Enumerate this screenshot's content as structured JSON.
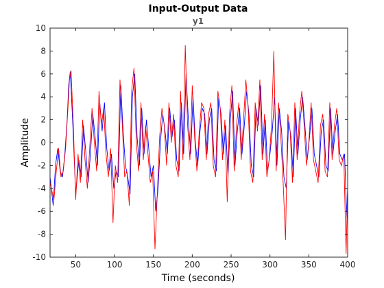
{
  "chart_data": {
    "type": "line",
    "title": "Input-Output Data",
    "subtitle": "y1",
    "xlabel": "Time (seconds)",
    "ylabel": "Amplitude",
    "xlim": [
      17,
      400
    ],
    "ylim": [
      -10,
      10
    ],
    "xticks": [
      50,
      100,
      150,
      200,
      250,
      300,
      350,
      400
    ],
    "yticks": [
      -10,
      -8,
      -6,
      -4,
      -2,
      0,
      2,
      4,
      6,
      8,
      10
    ],
    "xtick_labels": [
      "50",
      "100",
      "150",
      "200",
      "250",
      "300",
      "350",
      "400"
    ],
    "ytick_labels": [
      "-10",
      "-8",
      "-6",
      "-4",
      "-2",
      "0",
      "2",
      "4",
      "6",
      "8",
      "10"
    ],
    "grid": false,
    "series": [
      {
        "color": "#0000ff",
        "x": [
          17,
          21,
          24,
          27,
          30,
          33,
          36,
          39,
          41,
          43,
          46,
          50,
          54,
          57,
          60,
          63,
          66,
          69,
          72,
          75,
          78,
          81,
          84,
          87,
          90,
          93,
          96,
          99,
          102,
          105,
          108,
          111,
          114,
          117,
          120,
          123,
          126,
          129,
          132,
          135,
          138,
          141,
          144,
          147,
          150,
          153,
          156,
          159,
          162,
          165,
          168,
          171,
          174,
          177,
          180,
          183,
          186,
          189,
          192,
          195,
          198,
          201,
          204,
          207,
          210,
          213,
          216,
          219,
          222,
          225,
          228,
          231,
          234,
          237,
          240,
          243,
          246,
          249,
          252,
          255,
          258,
          261,
          264,
          267,
          270,
          273,
          276,
          279,
          282,
          285,
          288,
          291,
          294,
          297,
          300,
          303,
          306,
          309,
          312,
          315,
          318,
          321,
          324,
          327,
          330,
          333,
          336,
          339,
          342,
          345,
          348,
          351,
          354,
          357,
          360,
          363,
          366,
          369,
          372,
          375,
          378,
          381,
          384,
          387,
          390,
          393,
          396,
          399,
          400
        ],
        "values": [
          -3,
          -5.5,
          -2,
          -0.5,
          -2.5,
          -3,
          -1,
          2,
          5,
          6.2,
          2,
          -4.5,
          -1.5,
          -3,
          1.5,
          -0.8,
          -3.5,
          -1,
          2.5,
          0.5,
          -2,
          3.5,
          1,
          3.5,
          -0.5,
          -2.5,
          -1,
          -4,
          -2.5,
          -3,
          5,
          1,
          -2,
          -3,
          -4.5,
          4,
          6,
          0.5,
          -2,
          3,
          -1,
          2,
          -0.5,
          -3,
          -2,
          -6,
          -4,
          0,
          2.5,
          1,
          -1,
          3,
          0.5,
          2,
          -1.5,
          -2.5,
          3.5,
          -1,
          6,
          2,
          -1,
          4,
          0,
          -2,
          1,
          3,
          2.5,
          -1,
          2,
          3,
          -1.5,
          -2.5,
          4,
          2.5,
          -1,
          1.5,
          -3,
          2,
          4.5,
          -2,
          1,
          3,
          -1,
          1.5,
          4.5,
          2.5,
          -2,
          -3,
          3,
          1.5,
          5,
          -1,
          2,
          -2.5,
          -1,
          1,
          4,
          -2,
          3,
          1,
          -3,
          -4,
          2,
          0.5,
          -3,
          3,
          -1,
          2,
          4,
          1.5,
          -1.5,
          0.5,
          3,
          -1,
          -2,
          -3,
          1,
          2,
          -2,
          -2.5,
          3,
          -1,
          1,
          2.5,
          -1,
          -1.5,
          -1,
          -6.5,
          -4
        ]
      },
      {
        "color": "#ff0000",
        "x": [
          17,
          22,
          25,
          28,
          31,
          34,
          37,
          40,
          42,
          44,
          47,
          50,
          53,
          56,
          59,
          62,
          65,
          68,
          71,
          74,
          77,
          80,
          83,
          86,
          89,
          92,
          95,
          98,
          101,
          104,
          107,
          110,
          113,
          116,
          119,
          122,
          125,
          128,
          131,
          134,
          137,
          140,
          143,
          146,
          149,
          152,
          155,
          158,
          161,
          164,
          167,
          170,
          173,
          176,
          179,
          182,
          185,
          188,
          191,
          194,
          197,
          200,
          203,
          206,
          209,
          212,
          215,
          218,
          221,
          224,
          227,
          230,
          233,
          236,
          239,
          242,
          245,
          248,
          251,
          254,
          257,
          260,
          263,
          266,
          269,
          272,
          275,
          278,
          281,
          284,
          287,
          290,
          293,
          296,
          299,
          302,
          305,
          308,
          311,
          314,
          317,
          320,
          323,
          326,
          329,
          332,
          335,
          338,
          341,
          344,
          347,
          350,
          353,
          356,
          359,
          362,
          365,
          368,
          371,
          374,
          377,
          380,
          383,
          386,
          389,
          392,
          395,
          398,
          400
        ],
        "values": [
          -3.5,
          -5,
          -2.5,
          -0.5,
          -3,
          -2.5,
          -0.5,
          3,
          5.5,
          6.3,
          1.5,
          -5,
          -1,
          -3.5,
          2,
          -1.5,
          -4,
          -0.5,
          3,
          0,
          -2.5,
          4.5,
          1.5,
          3,
          -1,
          -3,
          -0.5,
          -7,
          -2,
          -3.5,
          5.5,
          1.5,
          -3,
          -2.5,
          -5.5,
          4.5,
          6.5,
          0,
          -2.5,
          3.5,
          -1.5,
          1.5,
          -1,
          -3.5,
          -2.5,
          -9.3,
          -4.5,
          0.5,
          3,
          1.5,
          -2,
          3.5,
          0,
          2.5,
          -2,
          -3,
          4.5,
          -1.5,
          8.5,
          1.5,
          -1.5,
          5,
          0.5,
          -2.5,
          1,
          3.5,
          3,
          -1.5,
          2.5,
          3.5,
          -2,
          -3,
          4.5,
          3,
          -1.5,
          2,
          -5.2,
          2.5,
          5,
          -2.5,
          1.5,
          3.5,
          -1.5,
          2,
          5.5,
          3,
          -2.5,
          -3.5,
          3.5,
          1,
          5.5,
          -1.5,
          2.5,
          -3,
          -1.5,
          1.5,
          8,
          -2.5,
          3.5,
          0.5,
          -3.5,
          -8.5,
          2.5,
          1,
          -3.5,
          3.5,
          -1.5,
          2.5,
          4.5,
          1.5,
          -2,
          0,
          3.5,
          -1.5,
          -2.5,
          -3.5,
          1.5,
          2.5,
          -2.5,
          -3,
          3.5,
          -1.5,
          1.5,
          3,
          -1.5,
          -2,
          -1,
          -9.7,
          -4
        ]
      }
    ]
  }
}
